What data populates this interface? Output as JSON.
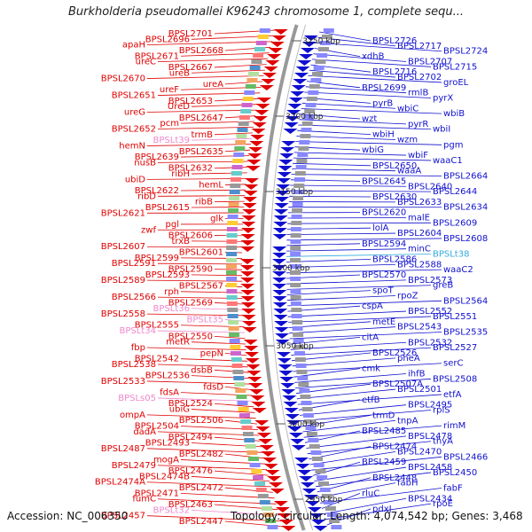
{
  "title": "Burkholderia pseudomallei K96243 chromosome 1, complete sequ...",
  "footer": {
    "accession": "Accession: NC_006350",
    "summary": "Topology: circular; Length: 4,074,542 bp; Genes: 3,468"
  },
  "colors": {
    "left_strand": "#e00000",
    "right_strand": "#1010d0",
    "rna_left": "#ee88cc",
    "rna_right": "#33aadd",
    "backbone": "#999999"
  },
  "ruler": [
    {
      "label": "3250 kbp"
    },
    {
      "label": "3200 kbp"
    },
    {
      "label": "3150 kbp"
    },
    {
      "label": "3100 kbp"
    },
    {
      "label": "3050 kbp"
    },
    {
      "label": "3000 kbp"
    },
    {
      "label": "2950 kbp"
    }
  ],
  "left_labels": [
    {
      "text": "BPSL2701",
      "kind": "gene"
    },
    {
      "text": "BPSL2696",
      "kind": "gene"
    },
    {
      "text": "apaH",
      "kind": "gene"
    },
    {
      "text": "BPSL2668",
      "kind": "gene"
    },
    {
      "text": "BPSL2671",
      "kind": "gene"
    },
    {
      "text": "ureC",
      "kind": "gene"
    },
    {
      "text": "BPSL2667",
      "kind": "gene"
    },
    {
      "text": "ureB",
      "kind": "gene"
    },
    {
      "text": "BPSL2670",
      "kind": "gene"
    },
    {
      "text": "ureA",
      "kind": "gene"
    },
    {
      "text": "ureF",
      "kind": "gene"
    },
    {
      "text": "BPSL2651",
      "kind": "gene"
    },
    {
      "text": "BPSL2653",
      "kind": "gene"
    },
    {
      "text": "UreD",
      "kind": "gene"
    },
    {
      "text": "ureG",
      "kind": "gene"
    },
    {
      "text": "BPSL2647",
      "kind": "gene"
    },
    {
      "text": "pcm",
      "kind": "gene"
    },
    {
      "text": "BPSL2652",
      "kind": "gene"
    },
    {
      "text": "trmB",
      "kind": "gene"
    },
    {
      "text": "BPSLt39",
      "kind": "rna"
    },
    {
      "text": "hemN",
      "kind": "gene"
    },
    {
      "text": "BPSL2635",
      "kind": "gene"
    },
    {
      "text": "BPSL2639",
      "kind": "gene"
    },
    {
      "text": "nusB",
      "kind": "gene"
    },
    {
      "text": "BPSL2632",
      "kind": "gene"
    },
    {
      "text": "ribH",
      "kind": "gene"
    },
    {
      "text": "ubiD",
      "kind": "gene"
    },
    {
      "text": "hemL",
      "kind": "gene"
    },
    {
      "text": "BPSL2622",
      "kind": "gene"
    },
    {
      "text": "ribD",
      "kind": "gene"
    },
    {
      "text": "ribB",
      "kind": "gene"
    },
    {
      "text": "BPSL2615",
      "kind": "gene"
    },
    {
      "text": "BPSL2621",
      "kind": "gene"
    },
    {
      "text": "glk",
      "kind": "gene"
    },
    {
      "text": "pgl",
      "kind": "gene"
    },
    {
      "text": "zwf",
      "kind": "gene"
    },
    {
      "text": "BPSL2606",
      "kind": "gene"
    },
    {
      "text": "trxB",
      "kind": "gene"
    },
    {
      "text": "BPSL2607",
      "kind": "gene"
    },
    {
      "text": "BPSL2601",
      "kind": "gene"
    },
    {
      "text": "BPSL2599",
      "kind": "gene"
    },
    {
      "text": "BPSL2591",
      "kind": "gene"
    },
    {
      "text": "BPSL2590",
      "kind": "gene"
    },
    {
      "text": "BPSL2593",
      "kind": "gene"
    },
    {
      "text": "BPSL2589",
      "kind": "gene"
    },
    {
      "text": "BPSL2567",
      "kind": "gene"
    },
    {
      "text": "rph",
      "kind": "gene"
    },
    {
      "text": "BPSL2566",
      "kind": "gene"
    },
    {
      "text": "BPSL2569",
      "kind": "gene"
    },
    {
      "text": "BPSLt36",
      "kind": "rna"
    },
    {
      "text": "BPSL2558",
      "kind": "gene"
    },
    {
      "text": "BPSLt35",
      "kind": "rna"
    },
    {
      "text": "BPSL2555",
      "kind": "gene"
    },
    {
      "text": "BPSLt34",
      "kind": "rna"
    },
    {
      "text": "BPSL2550",
      "kind": "gene"
    },
    {
      "text": "metR",
      "kind": "gene"
    },
    {
      "text": "fbp",
      "kind": "gene"
    },
    {
      "text": "pepN",
      "kind": "gene"
    },
    {
      "text": "BPSL2542",
      "kind": "gene"
    },
    {
      "text": "BPSL2538",
      "kind": "gene"
    },
    {
      "text": "dsbB",
      "kind": "gene"
    },
    {
      "text": "BPSL2536",
      "kind": "gene"
    },
    {
      "text": "BPSL2533",
      "kind": "gene"
    },
    {
      "text": "fdsD",
      "kind": "gene"
    },
    {
      "text": "fdsA",
      "kind": "gene"
    },
    {
      "text": "BPSLs05",
      "kind": "rna"
    },
    {
      "text": "BPSL2524",
      "kind": "gene"
    },
    {
      "text": "ubiG",
      "kind": "gene"
    },
    {
      "text": "ompA",
      "kind": "gene"
    },
    {
      "text": "BPSL2506",
      "kind": "gene"
    },
    {
      "text": "BPSL2504",
      "kind": "gene"
    },
    {
      "text": "dadA",
      "kind": "gene"
    },
    {
      "text": "BPSL2494",
      "kind": "gene"
    },
    {
      "text": "BPSL2493",
      "kind": "gene"
    },
    {
      "text": "BPSL2487",
      "kind": "gene"
    },
    {
      "text": "BPSL2482",
      "kind": "gene"
    },
    {
      "text": "mogA",
      "kind": "gene"
    },
    {
      "text": "BPSL2479",
      "kind": "gene"
    },
    {
      "text": "BPSL2476",
      "kind": "gene"
    },
    {
      "text": "BPSL2474B",
      "kind": "gene"
    },
    {
      "text": "BPSL2474A",
      "kind": "gene"
    },
    {
      "text": "BPSL2472",
      "kind": "gene"
    },
    {
      "text": "BPSL2471",
      "kind": "gene"
    },
    {
      "text": "fumC",
      "kind": "gene"
    },
    {
      "text": "BPSL2463",
      "kind": "gene"
    },
    {
      "text": "BPSLt32",
      "kind": "rna"
    },
    {
      "text": "BPSL2457",
      "kind": "gene"
    },
    {
      "text": "BPSL2447",
      "kind": "gene"
    }
  ],
  "right_labels": [
    {
      "text": "BPSL2726",
      "kind": "gene"
    },
    {
      "text": "BPSL2717",
      "kind": "gene"
    },
    {
      "text": "BPSL2724",
      "kind": "gene"
    },
    {
      "text": "xdhB",
      "kind": "gene"
    },
    {
      "text": "BPSL2707",
      "kind": "gene"
    },
    {
      "text": "BPSL2715",
      "kind": "gene"
    },
    {
      "text": "BPSL2716",
      "kind": "gene"
    },
    {
      "text": "BPSL2702",
      "kind": "gene"
    },
    {
      "text": "groEL",
      "kind": "gene"
    },
    {
      "text": "BPSL2699",
      "kind": "gene"
    },
    {
      "text": "rmlB",
      "kind": "gene"
    },
    {
      "text": "pyrX",
      "kind": "gene"
    },
    {
      "text": "pyrB",
      "kind": "gene"
    },
    {
      "text": "wbiC",
      "kind": "gene"
    },
    {
      "text": "wbiB",
      "kind": "gene"
    },
    {
      "text": "wzt",
      "kind": "gene"
    },
    {
      "text": "pyrR",
      "kind": "gene"
    },
    {
      "text": "wbiI",
      "kind": "gene"
    },
    {
      "text": "wbiH",
      "kind": "gene"
    },
    {
      "text": "wzm",
      "kind": "gene"
    },
    {
      "text": "pgm",
      "kind": "gene"
    },
    {
      "text": "wbiG",
      "kind": "gene"
    },
    {
      "text": "wbiF",
      "kind": "gene"
    },
    {
      "text": "waaC1",
      "kind": "gene"
    },
    {
      "text": "BPSL2650",
      "kind": "gene"
    },
    {
      "text": "waaA",
      "kind": "gene"
    },
    {
      "text": "BPSL2664",
      "kind": "gene"
    },
    {
      "text": "BPSL2645",
      "kind": "gene"
    },
    {
      "text": "BPSL2640",
      "kind": "gene"
    },
    {
      "text": "BPSL2644",
      "kind": "gene"
    },
    {
      "text": "BPSL2630",
      "kind": "gene"
    },
    {
      "text": "BPSL2633",
      "kind": "gene"
    },
    {
      "text": "BPSL2634",
      "kind": "gene"
    },
    {
      "text": "BPSL2620",
      "kind": "gene"
    },
    {
      "text": "malE",
      "kind": "gene"
    },
    {
      "text": "BPSL2609",
      "kind": "gene"
    },
    {
      "text": "lolA",
      "kind": "gene"
    },
    {
      "text": "BPSL2604",
      "kind": "gene"
    },
    {
      "text": "BPSL2608",
      "kind": "gene"
    },
    {
      "text": "BPSL2594",
      "kind": "gene"
    },
    {
      "text": "minC",
      "kind": "gene"
    },
    {
      "text": "BPSLt38",
      "kind": "rna"
    },
    {
      "text": "BPSL2586",
      "kind": "gene"
    },
    {
      "text": "BPSL2588",
      "kind": "gene"
    },
    {
      "text": "waaC2",
      "kind": "gene"
    },
    {
      "text": "BPSL2570",
      "kind": "gene"
    },
    {
      "text": "BPSL2573",
      "kind": "gene"
    },
    {
      "text": "greB",
      "kind": "gene"
    },
    {
      "text": "spoT",
      "kind": "gene"
    },
    {
      "text": "rpoZ",
      "kind": "gene"
    },
    {
      "text": "BPSL2564",
      "kind": "gene"
    },
    {
      "text": "cspA",
      "kind": "gene"
    },
    {
      "text": "BPSL2552",
      "kind": "gene"
    },
    {
      "text": "BPSL2551",
      "kind": "gene"
    },
    {
      "text": "metE",
      "kind": "gene"
    },
    {
      "text": "BPSL2543",
      "kind": "gene"
    },
    {
      "text": "BPSL2535",
      "kind": "gene"
    },
    {
      "text": "citA",
      "kind": "gene"
    },
    {
      "text": "BPSL2532",
      "kind": "gene"
    },
    {
      "text": "BPSL2527",
      "kind": "gene"
    },
    {
      "text": "BPSL2526",
      "kind": "gene"
    },
    {
      "text": "pheA",
      "kind": "gene"
    },
    {
      "text": "serC",
      "kind": "gene"
    },
    {
      "text": "cmk",
      "kind": "gene"
    },
    {
      "text": "ihfB",
      "kind": "gene"
    },
    {
      "text": "BPSL2508",
      "kind": "gene"
    },
    {
      "text": "BPSL2507A",
      "kind": "gene"
    },
    {
      "text": "BPSL2501",
      "kind": "gene"
    },
    {
      "text": "etfA",
      "kind": "gene"
    },
    {
      "text": "etfB",
      "kind": "gene"
    },
    {
      "text": "BPSL2495",
      "kind": "gene"
    },
    {
      "text": "rplS",
      "kind": "gene"
    },
    {
      "text": "trmD",
      "kind": "gene"
    },
    {
      "text": "tnpA",
      "kind": "gene"
    },
    {
      "text": "rimM",
      "kind": "gene"
    },
    {
      "text": "BPSL2485",
      "kind": "gene"
    },
    {
      "text": "BPSL2478",
      "kind": "gene"
    },
    {
      "text": "thyA",
      "kind": "gene"
    },
    {
      "text": "BPSL2474",
      "kind": "gene"
    },
    {
      "text": "BPSL2470",
      "kind": "gene"
    },
    {
      "text": "BPSL2466",
      "kind": "gene"
    },
    {
      "text": "BPSL2459",
      "kind": "gene"
    },
    {
      "text": "BPSL2458",
      "kind": "gene"
    },
    {
      "text": "BPSL2450",
      "kind": "gene"
    },
    {
      "text": "BPSL2448",
      "kind": "gene"
    },
    {
      "text": "fabH",
      "kind": "gene"
    },
    {
      "text": "fabF",
      "kind": "gene"
    },
    {
      "text": "rluC",
      "kind": "gene"
    },
    {
      "text": "BPSL2434",
      "kind": "gene"
    },
    {
      "text": "rpoE",
      "kind": "gene"
    },
    {
      "text": "pdxJ",
      "kind": "gene"
    }
  ]
}
